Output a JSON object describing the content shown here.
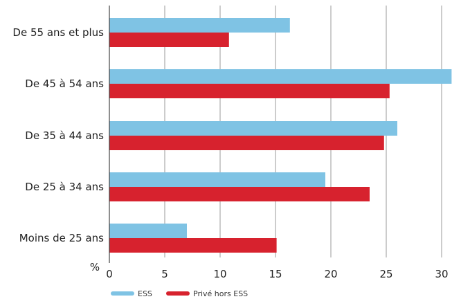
{
  "chart_data": {
    "type": "bar",
    "orientation": "horizontal",
    "categories": [
      "De 55 ans et plus",
      "De 45 à 54 ans",
      "De 35 à 44 ans",
      "De 25 à 34 ans",
      "Moins de 25 ans"
    ],
    "series": [
      {
        "name": "ESS",
        "values": [
          16.3,
          30.9,
          26.0,
          19.5,
          7.0
        ],
        "color": "#7fc3e4"
      },
      {
        "name": "Privé hors ESS",
        "values": [
          10.8,
          25.3,
          24.8,
          23.5,
          15.1
        ],
        "color": "#d7222e"
      }
    ],
    "x_unit": "%",
    "xlim": [
      0,
      31
    ],
    "xticks": [
      0,
      5,
      10,
      15,
      20,
      25,
      30
    ],
    "grid": true,
    "legend_position": "bottom"
  }
}
